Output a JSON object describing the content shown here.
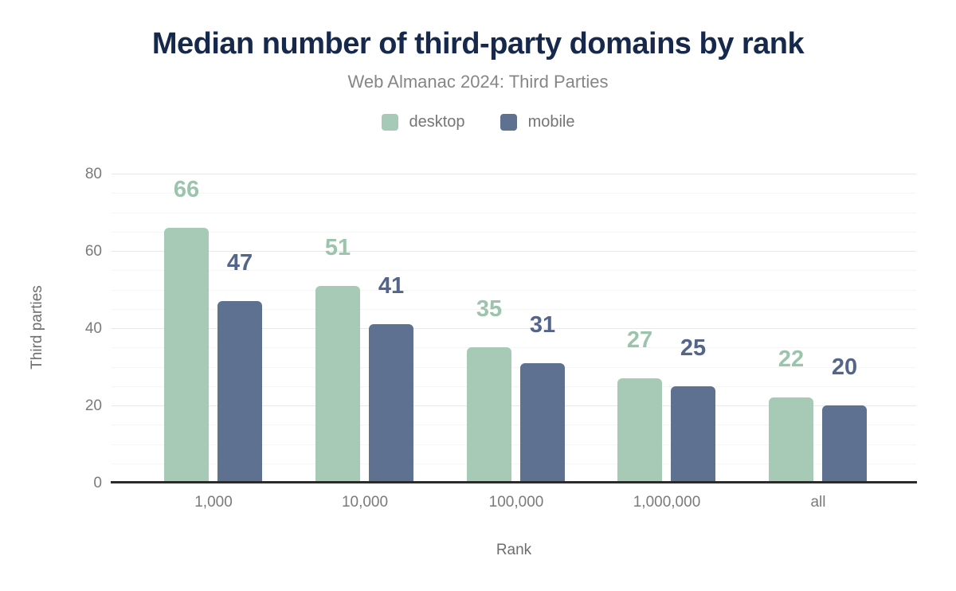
{
  "title": "Median number of third-party domains by rank",
  "subtitle": "Web Almanac 2024: Third Parties",
  "legend": [
    {
      "label": "desktop",
      "color": "#a7cab6"
    },
    {
      "label": "mobile",
      "color": "#5e7190"
    }
  ],
  "colors": {
    "title": "#16294d",
    "subtitle": "#868686",
    "desktop_bar": "#a7cab6",
    "desktop_label": "#9cc4ad",
    "mobile_bar": "#5e7190",
    "mobile_label": "#54658b",
    "axis_line": "#2b2b2b",
    "tick_text": "#7a7a7a"
  },
  "chart_data": {
    "type": "bar",
    "categories": [
      "1,000",
      "10,000",
      "100,000",
      "1,000,000",
      "all"
    ],
    "series": [
      {
        "name": "desktop",
        "color": "#a7cab6",
        "label_color": "#9cc4ad",
        "values": [
          66,
          51,
          35,
          27,
          22
        ]
      },
      {
        "name": "mobile",
        "color": "#5e7190",
        "label_color": "#54658b",
        "values": [
          47,
          41,
          31,
          25,
          20
        ]
      }
    ],
    "title": "Median number of third-party domains by rank",
    "subtitle": "Web Almanac 2024: Third Parties",
    "xlabel": "Rank",
    "ylabel": "Third parties",
    "ylim": [
      0,
      80
    ],
    "yticks": [
      0,
      20,
      40,
      60,
      80
    ],
    "minor_tick_step": 5,
    "grid": true,
    "legend_position": "top",
    "data_labels": true
  }
}
